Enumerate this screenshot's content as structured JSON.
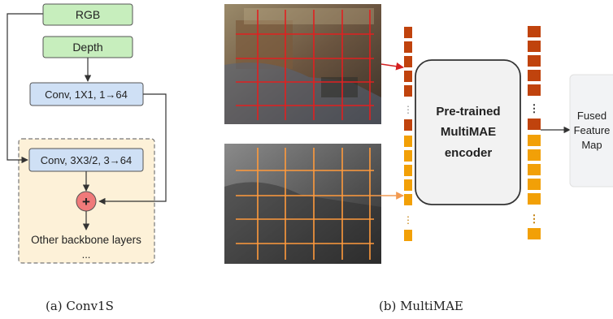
{
  "panel_a": {
    "rgb_label": "RGB",
    "depth_label": "Depth",
    "conv1_label": "Conv, 1X1, 1→64",
    "conv3_label": "Conv, 3X3/2, 3→64",
    "add_symbol": "+",
    "backbone_line1": "Other backbone layers",
    "backbone_line2": "...",
    "caption": "(a)  Conv1S",
    "colors": {
      "green": "#c7eebd",
      "blue": "#cfe0f5",
      "add": "#f07a7a",
      "dashed_region": "#fdf1d8"
    }
  },
  "panel_b": {
    "encoder_line1": "Pre-trained",
    "encoder_line2": "MultiMAE",
    "encoder_line3": "encoder",
    "output_line1": "Fused",
    "output_line2": "Feature",
    "output_line3": "Map",
    "ellipsis": "⋮",
    "caption": "(b)  MultiMAE",
    "colors": {
      "rgb_token": "#c0430d",
      "depth_token": "#f2a007",
      "rgb_grid": "#e02020",
      "depth_grid": "#ff9a3c"
    }
  }
}
